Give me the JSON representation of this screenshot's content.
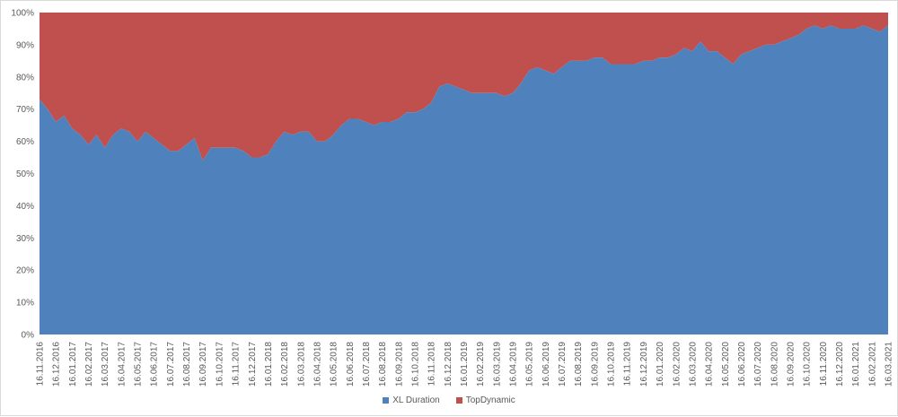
{
  "chart_data": {
    "type": "area",
    "stacking": "percent",
    "title": "",
    "xlabel": "",
    "ylabel": "",
    "ylim": [
      0,
      100
    ],
    "y_ticks": [
      "0%",
      "10%",
      "20%",
      "30%",
      "40%",
      "50%",
      "60%",
      "70%",
      "80%",
      "90%",
      "100%"
    ],
    "x_ticks": [
      "16.11.2016",
      "16.12.2016",
      "16.01.2017",
      "16.02.2017",
      "16.03.2017",
      "16.04.2017",
      "16.05.2017",
      "16.06.2017",
      "16.07.2017",
      "16.08.2017",
      "16.09.2017",
      "16.10.2017",
      "16.11.2017",
      "16.12.2017",
      "16.01.2018",
      "16.02.2018",
      "16.03.2018",
      "16.04.2018",
      "16.05.2018",
      "16.06.2018",
      "16.07.2018",
      "16.08.2018",
      "16.09.2018",
      "16.10.2018",
      "16.11.2018",
      "16.12.2018",
      "16.01.2019",
      "16.02.2019",
      "16.03.2019",
      "16.04.2019",
      "16.05.2019",
      "16.06.2019",
      "16.07.2019",
      "16.08.2019",
      "16.09.2019",
      "16.10.2019",
      "16.11.2019",
      "16.12.2019",
      "16.01.2020",
      "16.02.2020",
      "16.03.2020",
      "16.04.2020",
      "16.05.2020",
      "16.06.2020",
      "16.07.2020",
      "16.08.2020",
      "16.09.2020",
      "16.10.2020",
      "16.11.2020",
      "16.12.2020",
      "16.01.2021",
      "16.02.2021",
      "16.03.2021"
    ],
    "x": [
      "16.11.2016",
      "01.12.2016",
      "16.12.2016",
      "01.01.2017",
      "16.01.2017",
      "01.02.2017",
      "16.02.2017",
      "01.03.2017",
      "16.03.2017",
      "01.04.2017",
      "16.04.2017",
      "01.05.2017",
      "16.05.2017",
      "01.06.2017",
      "16.06.2017",
      "01.07.2017",
      "16.07.2017",
      "01.08.2017",
      "16.08.2017",
      "01.09.2017",
      "16.09.2017",
      "01.10.2017",
      "16.10.2017",
      "01.11.2017",
      "16.11.2017",
      "01.12.2017",
      "16.12.2017",
      "01.01.2018",
      "16.01.2018",
      "01.02.2018",
      "16.02.2018",
      "01.03.2018",
      "16.03.2018",
      "01.04.2018",
      "16.04.2018",
      "01.05.2018",
      "16.05.2018",
      "01.06.2018",
      "16.06.2018",
      "01.07.2018",
      "16.07.2018",
      "01.08.2018",
      "16.08.2018",
      "01.09.2018",
      "16.09.2018",
      "01.10.2018",
      "16.10.2018",
      "01.11.2018",
      "16.11.2018",
      "01.12.2018",
      "16.12.2018",
      "01.01.2019",
      "16.01.2019",
      "01.02.2019",
      "16.02.2019",
      "01.03.2019",
      "16.03.2019",
      "01.04.2019",
      "16.04.2019",
      "01.05.2019",
      "16.05.2019",
      "01.06.2019",
      "16.06.2019",
      "01.07.2019",
      "16.07.2019",
      "01.08.2019",
      "16.08.2019",
      "01.09.2019",
      "16.09.2019",
      "01.10.2019",
      "16.10.2019",
      "01.11.2019",
      "16.11.2019",
      "01.12.2019",
      "16.12.2019",
      "01.01.2020",
      "16.01.2020",
      "01.02.2020",
      "16.02.2020",
      "01.03.2020",
      "16.03.2020",
      "01.04.2020",
      "16.04.2020",
      "01.05.2020",
      "16.05.2020",
      "01.06.2020",
      "16.06.2020",
      "01.07.2020",
      "16.07.2020",
      "01.08.2020",
      "16.08.2020",
      "01.09.2020",
      "16.09.2020",
      "01.10.2020",
      "16.10.2020",
      "01.11.2020",
      "16.11.2020",
      "01.12.2020",
      "16.12.2020",
      "01.01.2021",
      "16.01.2021",
      "01.02.2021",
      "16.02.2021",
      "01.03.2021",
      "16.03.2021"
    ],
    "series": [
      {
        "name": "XL Duration",
        "color": "#4f81bd",
        "values": [
          73,
          70,
          66,
          68,
          64,
          62,
          59,
          62,
          58,
          62,
          64,
          63,
          60,
          63,
          61,
          59,
          57,
          57,
          59,
          61,
          54,
          58,
          58,
          58,
          58,
          57,
          55,
          55,
          56,
          60,
          63,
          62,
          63,
          63,
          60,
          60,
          62,
          65,
          67,
          67,
          66,
          65,
          66,
          66,
          67,
          69,
          69,
          70,
          72,
          77,
          78,
          77,
          76,
          75,
          75,
          75,
          75,
          74,
          75,
          78,
          82,
          83,
          82,
          81,
          83,
          85,
          85,
          85,
          86,
          86,
          84,
          84,
          84,
          84,
          85,
          85,
          86,
          86,
          87,
          89,
          88,
          91,
          88,
          88,
          86,
          84,
          87,
          88,
          89,
          90,
          90,
          91,
          92,
          93,
          95,
          96,
          95,
          96,
          95,
          95,
          95,
          96,
          95,
          94,
          96
        ]
      },
      {
        "name": "TopDynamic",
        "color": "#c0504d",
        "values": [
          27,
          30,
          34,
          32,
          36,
          38,
          41,
          38,
          42,
          38,
          36,
          37,
          40,
          37,
          39,
          41,
          43,
          43,
          41,
          39,
          46,
          42,
          42,
          42,
          42,
          43,
          45,
          45,
          44,
          40,
          37,
          38,
          37,
          37,
          40,
          40,
          38,
          35,
          33,
          33,
          34,
          35,
          34,
          34,
          33,
          31,
          31,
          30,
          28,
          23,
          22,
          23,
          24,
          25,
          25,
          25,
          25,
          26,
          25,
          22,
          18,
          17,
          18,
          19,
          17,
          15,
          15,
          15,
          14,
          14,
          16,
          16,
          16,
          16,
          15,
          15,
          14,
          14,
          13,
          11,
          12,
          9,
          12,
          12,
          14,
          16,
          13,
          12,
          11,
          10,
          10,
          9,
          8,
          7,
          5,
          4,
          5,
          4,
          5,
          5,
          5,
          4,
          5,
          6,
          4
        ]
      }
    ],
    "legend_position": "bottom",
    "grid": false
  }
}
